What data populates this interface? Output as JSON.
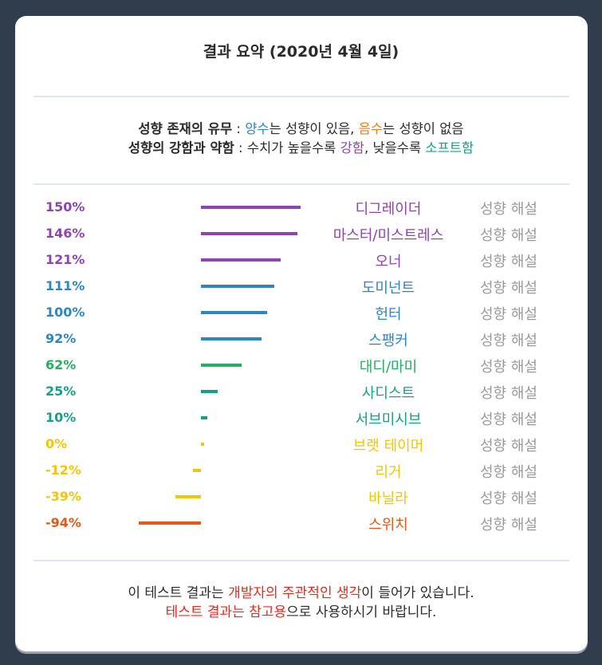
{
  "summary": {
    "title": "결과 요약 (2020년 4월 4일)"
  },
  "legend": {
    "line1_label": "성향 존재의 유무",
    "line1_sep": " : ",
    "line1_pos": "양수",
    "line1_text_a": "는 성향이 있음, ",
    "line1_neg": "음수",
    "line1_text_b": "는 성향이 없음",
    "line2_label": "성향의 강함과 약함",
    "line2_sep": " : ",
    "line2_text_a": "수치가 높을수록 ",
    "line2_hard": "강함",
    "line2_text_b": ", 낮을수록 ",
    "line2_soft": "소프트함"
  },
  "colors": {
    "purple": "#8e44ad",
    "blue": "#2e86c1",
    "green": "#27ae60",
    "teal": "#16a085",
    "yellow": "#f1c40f",
    "orange": "#e67e22"
  },
  "chart_data": {
    "type": "bar",
    "orientation": "horizontal",
    "title": "결과 요약 (2020년 4월 4일)",
    "unit": "%",
    "domain": [
      -150,
      150
    ],
    "categories": [
      "디그레이더",
      "마스터/미스트레스",
      "오너",
      "도미넌트",
      "헌터",
      "스팽커",
      "대디/마미",
      "사디스트",
      "서브미시브",
      "브랫 테이머",
      "리거",
      "바닐라",
      "스위치"
    ],
    "values": [
      150,
      146,
      121,
      111,
      100,
      92,
      62,
      25,
      10,
      0,
      -12,
      -39,
      -94
    ],
    "labels": [
      "150%",
      "146%",
      "121%",
      "111%",
      "100%",
      "92%",
      "62%",
      "25%",
      "10%",
      "0%",
      "-12%",
      "-39%",
      "-94%"
    ],
    "colors": [
      "#8e44ad",
      "#8e44ad",
      "#8e44ad",
      "#2e86c1",
      "#2e86c1",
      "#2e86c1",
      "#27ae60",
      "#16a085",
      "#16a085",
      "#f1c40f",
      "#f1c40f",
      "#f1c40f",
      "#e05a1a"
    ],
    "link_label": "성향 해설"
  },
  "footer": {
    "l1_a": "이 테스트 결과는 ",
    "l1_red": "개발자의 주관적인 생각",
    "l1_b": "이 들어가 있습니다.",
    "l2_red": "테스트 결과는 참고용",
    "l2_b": "으로 사용하시기 바랍니다."
  }
}
